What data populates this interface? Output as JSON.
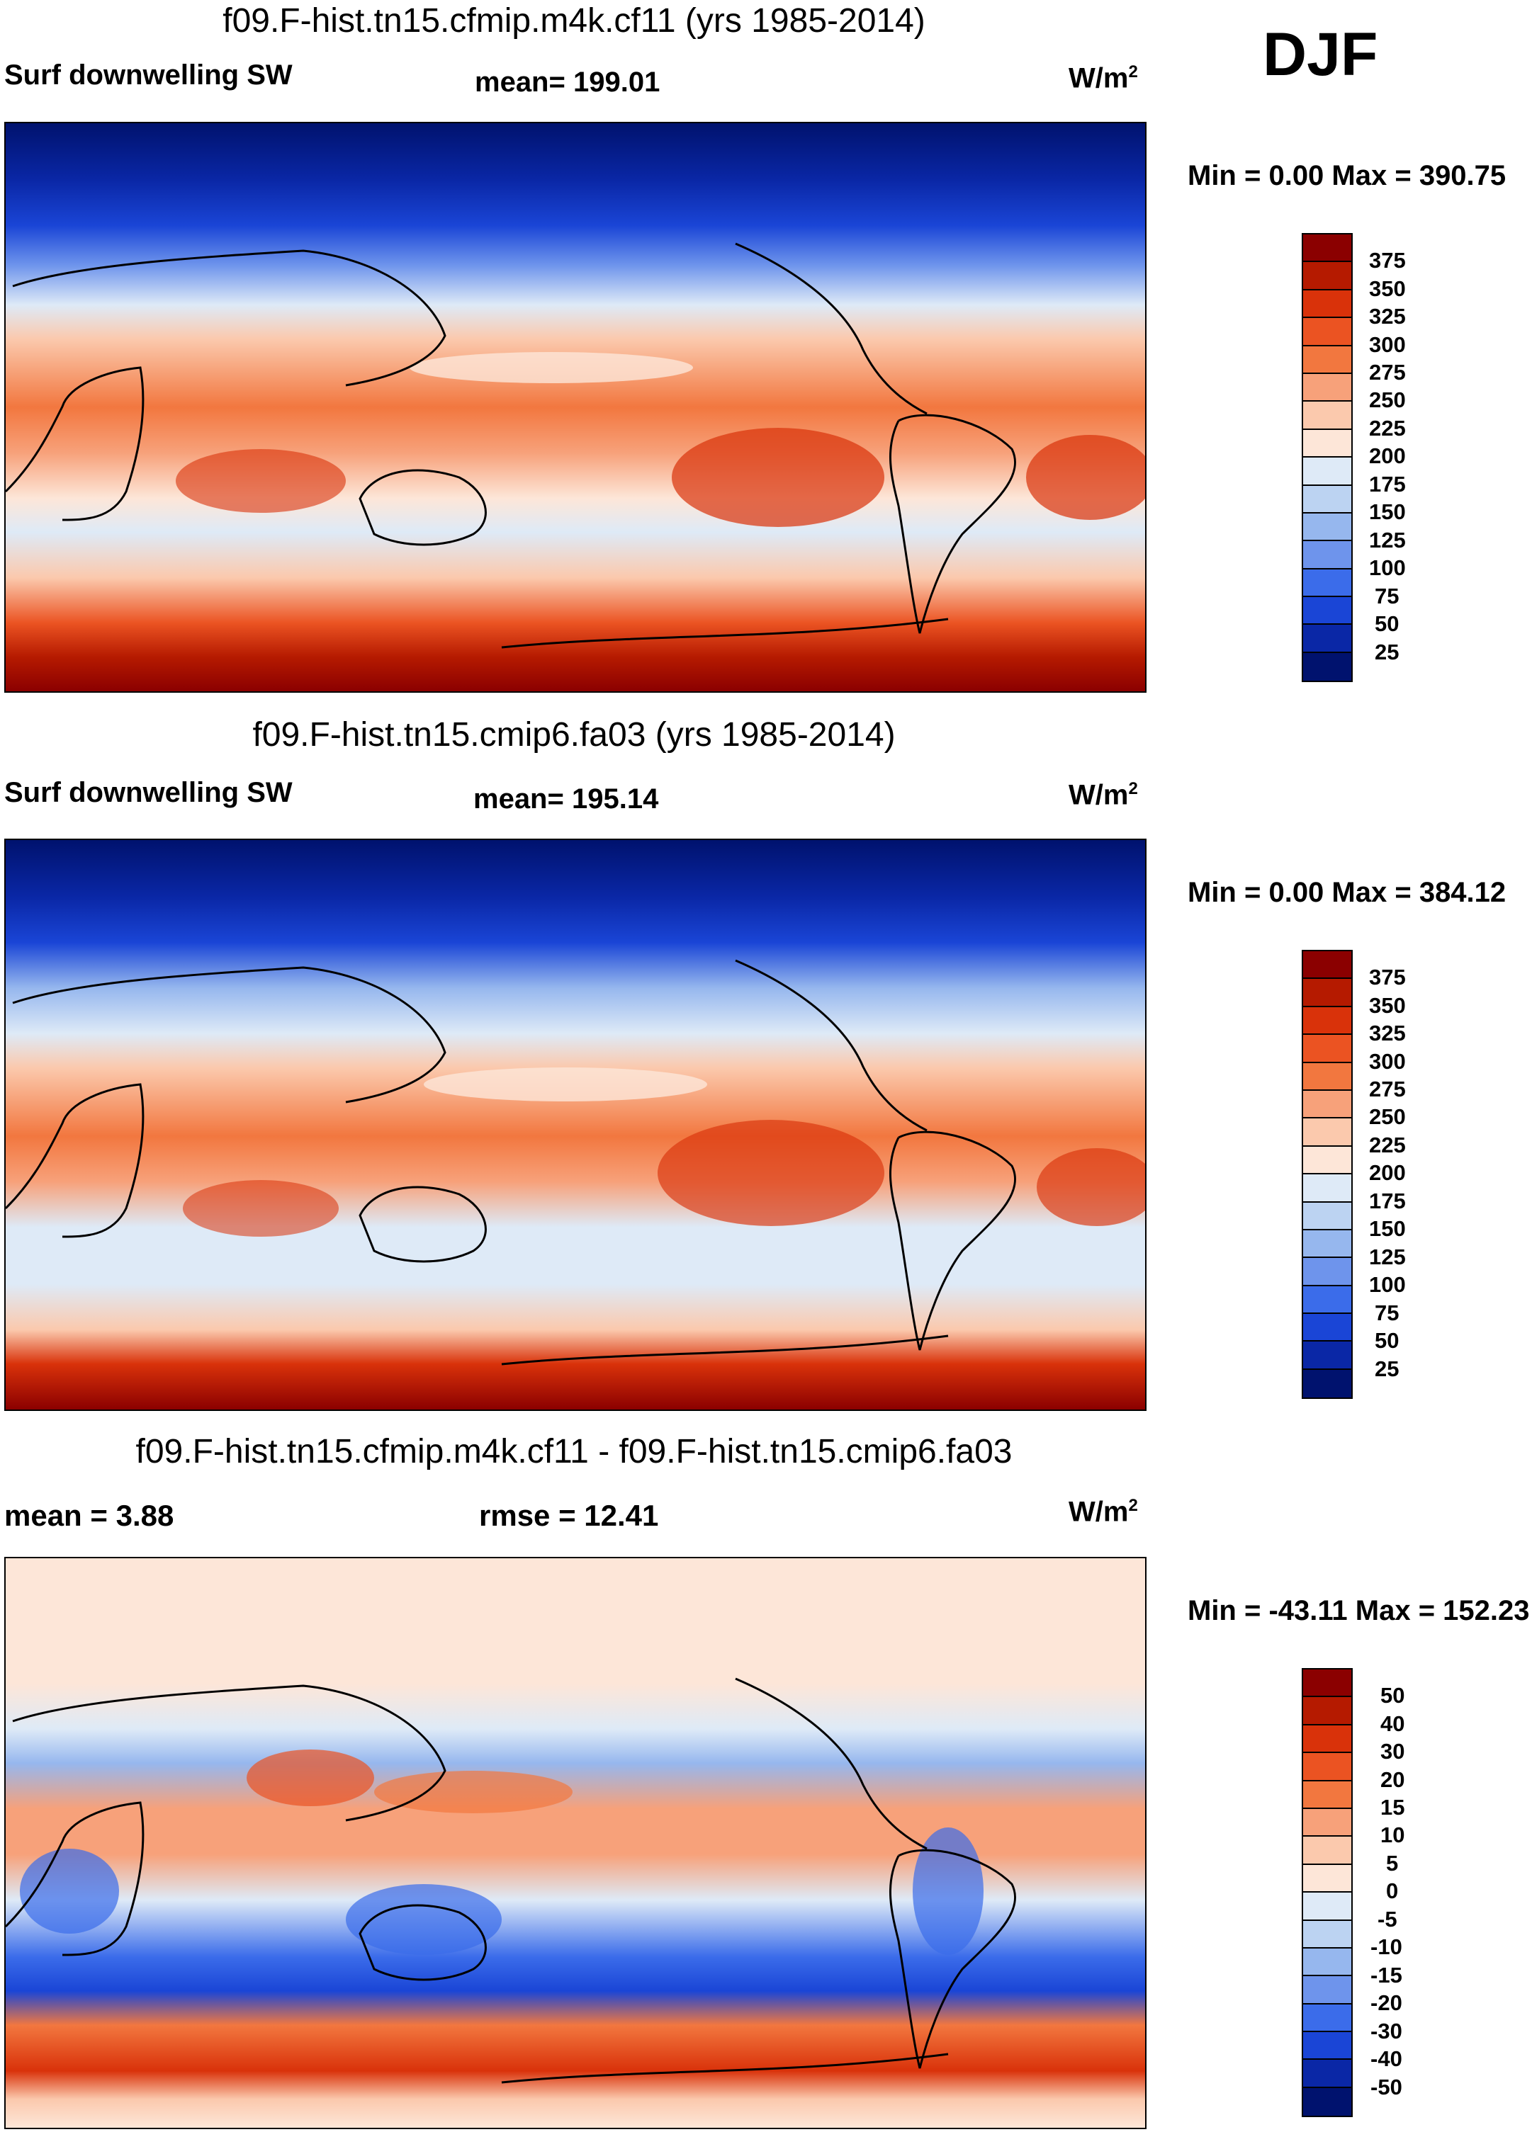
{
  "season": "DJF",
  "panels": [
    {
      "title": "f09.F-hist.tn15.cfmip.m4k.cf11 (yrs 1985-2014)",
      "left": "Surf downwelling SW",
      "center": "mean= 199.01",
      "units_base": "W/m",
      "units_exp": "2",
      "minmax": "Min =   0.00 Max = 390.75",
      "colorbar_labels": [
        "375",
        "350",
        "325",
        "300",
        "275",
        "250",
        "225",
        "200",
        "175",
        "150",
        "125",
        "100",
        "75",
        "50",
        "25"
      ],
      "colorbar_colors": [
        "#8b0000",
        "#b51a00",
        "#d9320a",
        "#eb5322",
        "#f2773f",
        "#f7a17a",
        "#fbc9ad",
        "#fde6d8",
        "#deeaf7",
        "#bcd3f2",
        "#96b7ee",
        "#6e94ec",
        "#3b6cea",
        "#1a45d6",
        "#0a27a6",
        "#00126e"
      ]
    },
    {
      "title": "f09.F-hist.tn15.cmip6.fa03 (yrs 1985-2014)",
      "left": "Surf downwelling SW",
      "center": "mean= 195.14",
      "units_base": "W/m",
      "units_exp": "2",
      "minmax": "Min =   0.00 Max = 384.12",
      "colorbar_labels": [
        "375",
        "350",
        "325",
        "300",
        "275",
        "250",
        "225",
        "200",
        "175",
        "150",
        "125",
        "100",
        "75",
        "50",
        "25"
      ],
      "colorbar_colors": [
        "#8b0000",
        "#b51a00",
        "#d9320a",
        "#eb5322",
        "#f2773f",
        "#f7a17a",
        "#fbc9ad",
        "#fde6d8",
        "#deeaf7",
        "#bcd3f2",
        "#96b7ee",
        "#6e94ec",
        "#3b6cea",
        "#1a45d6",
        "#0a27a6",
        "#00126e"
      ]
    },
    {
      "title": "f09.F-hist.tn15.cfmip.m4k.cf11 - f09.F-hist.tn15.cmip6.fa03",
      "left": "mean =   3.88",
      "center": "rmse =  12.41",
      "units_base": "W/m",
      "units_exp": "2",
      "minmax": "Min = -43.11 Max = 152.23",
      "colorbar_labels": [
        "50",
        "40",
        "30",
        "20",
        "15",
        "10",
        "5",
        "0",
        "-5",
        "-10",
        "-15",
        "-20",
        "-30",
        "-40",
        "-50"
      ],
      "colorbar_colors": [
        "#8b0000",
        "#b51a00",
        "#d9320a",
        "#eb5322",
        "#f2773f",
        "#f7a17a",
        "#fbc9ad",
        "#fde6d8",
        "#deeaf7",
        "#bcd3f2",
        "#96b7ee",
        "#6e94ec",
        "#3b6cea",
        "#1a45d6",
        "#0a27a6",
        "#00126e"
      ]
    }
  ]
}
